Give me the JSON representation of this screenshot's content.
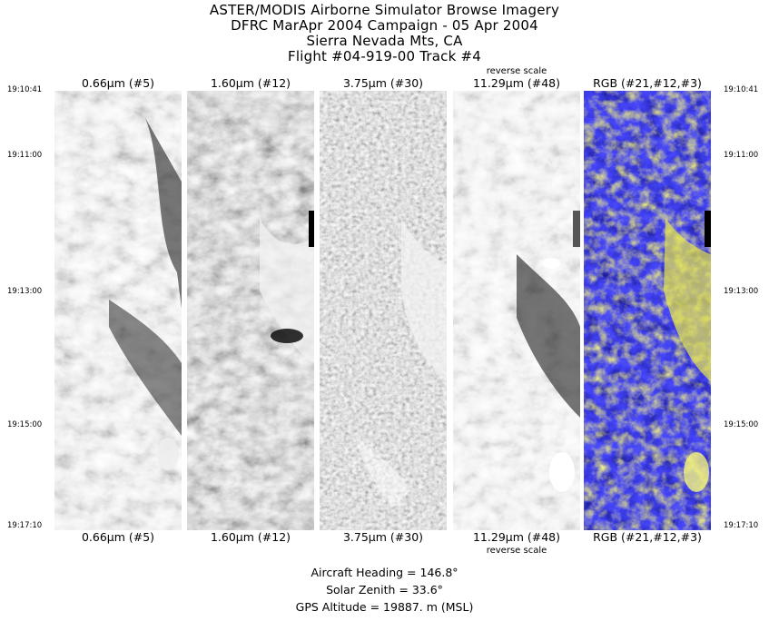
{
  "header": {
    "line1": "ASTER/MODIS Airborne Simulator Browse Imagery",
    "line2": "DFRC MarApr 2004 Campaign - 05 Apr 2004",
    "line3": "Sierra Nevada Mts, CA",
    "line4": "Flight #04-919-00 Track #4"
  },
  "bands": [
    {
      "label": "0.66μm (#5)"
    },
    {
      "label": "1.60μm (#12)"
    },
    {
      "label": "3.75μm (#30)"
    },
    {
      "label": "11.29μm (#48)",
      "note": "reverse scale"
    },
    {
      "label": "RGB (#21,#12,#3)"
    }
  ],
  "times": [
    "19:10:41",
    "19:11:00",
    "19:13:00",
    "19:15:00",
    "19:17:10"
  ],
  "footer": {
    "heading": "Aircraft Heading =  146.8°",
    "zenith": "Solar Zenith =   33.6°",
    "altitude": "GPS Altitude =  19887. m (MSL)"
  }
}
